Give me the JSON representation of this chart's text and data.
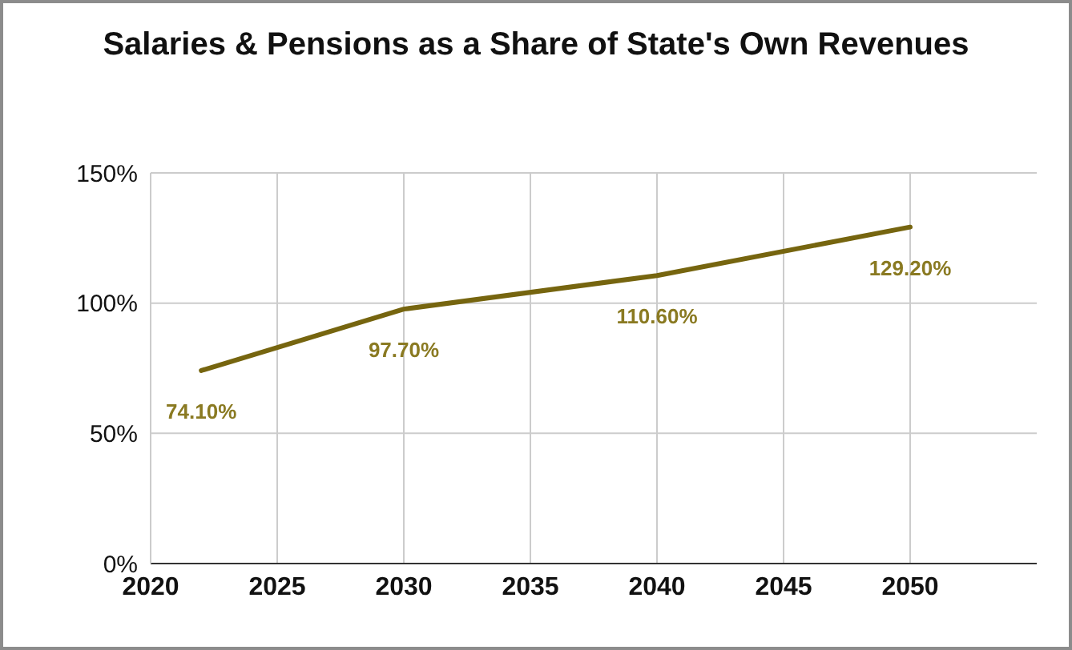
{
  "chart_data": {
    "type": "line",
    "title": "Salaries & Pensions as a Share of State's Own Revenues",
    "x": [
      2022,
      2030,
      2040,
      2050
    ],
    "series": [
      {
        "color": "#76650f",
        "values": [
          74.1,
          97.7,
          110.6,
          129.2
        ],
        "value_labels": [
          "74.10%",
          "97.70%",
          "110.60%",
          "129.20%"
        ]
      }
    ],
    "xlim": [
      2020,
      2055
    ],
    "xticks": [
      2020,
      2025,
      2030,
      2035,
      2040,
      2045,
      2050
    ],
    "ylim": [
      0,
      150
    ],
    "yticks": [
      {
        "value": 0,
        "label": "0%"
      },
      {
        "value": 50,
        "label": "50%"
      },
      {
        "value": 100,
        "label": "100%"
      },
      {
        "value": 150,
        "label": "150%"
      }
    ],
    "grid": true,
    "marker": "none",
    "line_style": "solid",
    "legend": false
  }
}
